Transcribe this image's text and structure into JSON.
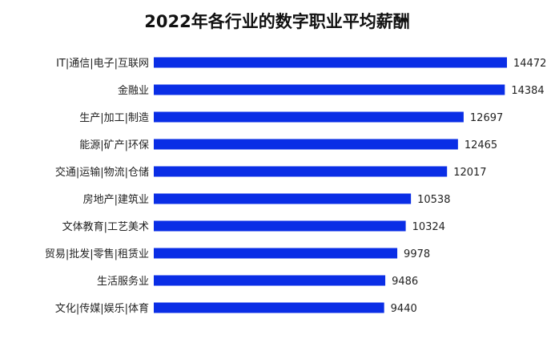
{
  "chart_data": {
    "type": "bar",
    "orientation": "horizontal",
    "title": "2022年各行业的数字职业平均薪酬",
    "categories": [
      "IT|通信|电子|互联网",
      "金融业",
      "生产|加工|制造",
      "能源|矿产|环保",
      "交通|运输|物流|仓储",
      "房地产|建筑业",
      "文体教育|工艺美术",
      "贸易|批发|零售|租赁业",
      "生活服务业",
      "文化|传媒|娱乐|体育"
    ],
    "values": [
      14472,
      14384,
      12697,
      12465,
      12017,
      10538,
      10324,
      9978,
      9486,
      9440
    ],
    "data_labels": true,
    "xlim": [
      0,
      14472
    ],
    "grid": false,
    "legend": "none",
    "colors": {
      "bar": "#0a2ee6",
      "text": "#222222"
    }
  }
}
